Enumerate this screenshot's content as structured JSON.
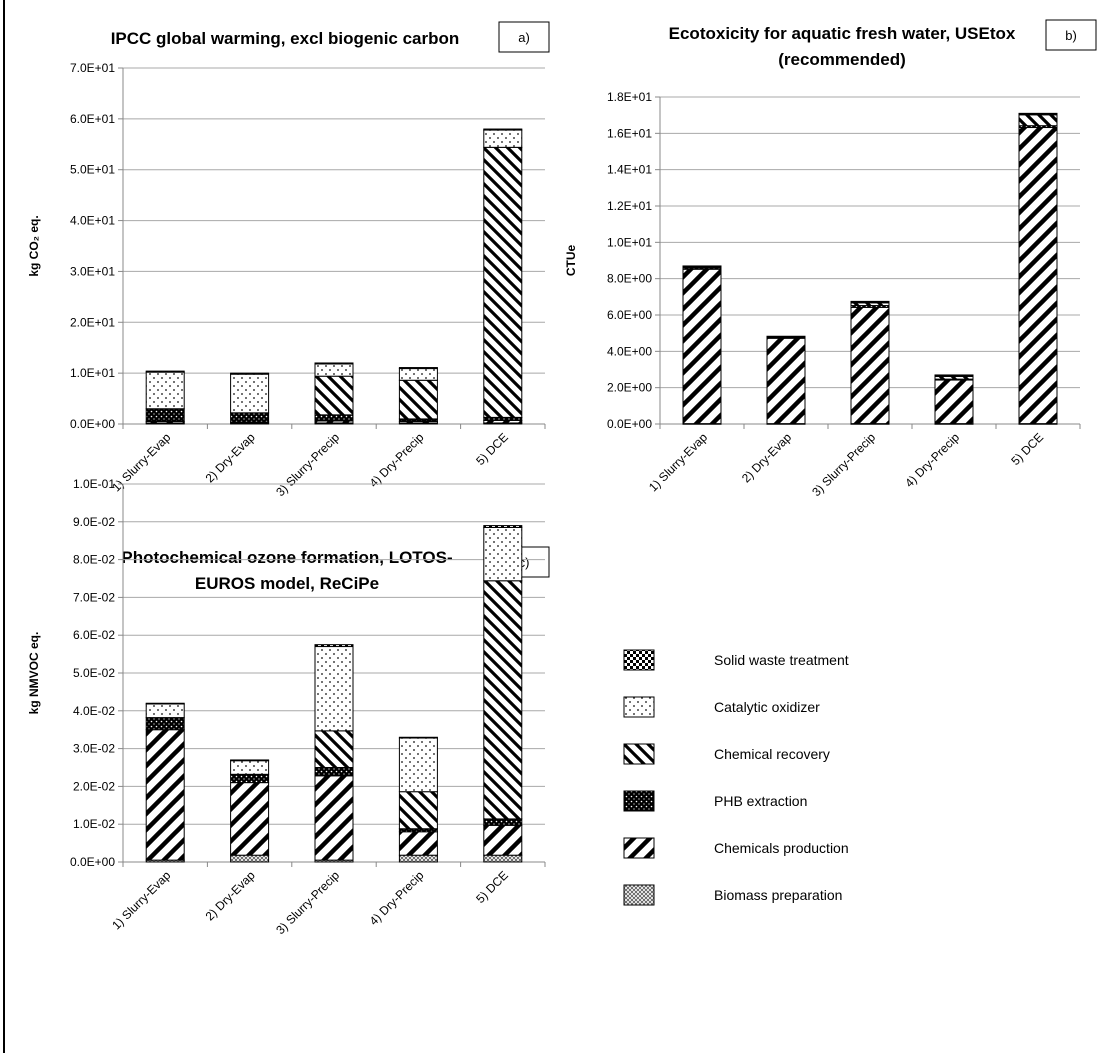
{
  "legend": [
    {
      "key": "solid",
      "label": "Solid waste treatment",
      "pattern": "checker"
    },
    {
      "key": "cat",
      "label": "Catalytic oxidizer",
      "pattern": "dots"
    },
    {
      "key": "chemrec",
      "label": "Chemical recovery",
      "pattern": "backslash"
    },
    {
      "key": "phb",
      "label": "PHB extraction",
      "pattern": "black-dots"
    },
    {
      "key": "chemprod",
      "label": "Chemicals production",
      "pattern": "slash"
    },
    {
      "key": "bio",
      "label": "Biomass preparation",
      "pattern": "crosshatch"
    }
  ],
  "chart_data": [
    {
      "id": "a",
      "badge": "a)",
      "type": "bar",
      "stacked": true,
      "title": [
        "IPCC global warming, excl biogenic carbon"
      ],
      "ylabel": "kg CO₂ eq.",
      "ylim": [
        0,
        70
      ],
      "ytick_step": 10,
      "ytick_labels": [
        "0.0E+00",
        "1.0E+01",
        "2.0E+01",
        "3.0E+01",
        "4.0E+01",
        "5.0E+01",
        "6.0E+01",
        "7.0E+01"
      ],
      "grid": true,
      "categories": [
        "1) Slurry-Evap",
        "2) Dry-Evap",
        "3) Slurry-Precip",
        "4) Dry-Precip",
        "5) DCE"
      ],
      "series": [
        {
          "key": "bio",
          "name": "Biomass preparation",
          "values": [
            0.2,
            0.2,
            0.2,
            0.2,
            0.2
          ]
        },
        {
          "key": "chemprod",
          "name": "Chemicals production",
          "values": [
            0.3,
            0.2,
            0.4,
            0.3,
            0.5
          ]
        },
        {
          "key": "phb",
          "name": "PHB extraction",
          "values": [
            2.5,
            1.8,
            1.2,
            0.5,
            0.6
          ]
        },
        {
          "key": "chemrec",
          "name": "Chemical recovery",
          "values": [
            0,
            0,
            7.6,
            7.6,
            53.1
          ]
        },
        {
          "key": "cat",
          "name": "Catalytic oxidizer",
          "values": [
            7.2,
            7.6,
            2.4,
            2.3,
            3.4
          ]
        },
        {
          "key": "solid",
          "name": "Solid waste treatment",
          "values": [
            0.2,
            0.2,
            0.2,
            0.2,
            0.2
          ]
        }
      ]
    },
    {
      "id": "b",
      "badge": "b)",
      "type": "bar",
      "stacked": true,
      "title": [
        "Ecotoxicity for aquatic fresh water, USEtox",
        "(recommended)"
      ],
      "ylabel": "CTUe",
      "ylim": [
        0,
        18
      ],
      "ytick_step": 2,
      "ytick_labels": [
        "0.0E+00",
        "2.0E+00",
        "4.0E+00",
        "6.0E+00",
        "8.0E+00",
        "1.0E+01",
        "1.2E+01",
        "1.4E+01",
        "1.6E+01",
        "1.8E+01"
      ],
      "grid": true,
      "categories": [
        "1) Slurry-Evap",
        "2) Dry-Evap",
        "3) Slurry-Precip",
        "4) Dry-Precip",
        "5) DCE"
      ],
      "series": [
        {
          "key": "bio",
          "name": "Biomass preparation",
          "values": [
            0.02,
            0.02,
            0.02,
            0.02,
            0.02
          ]
        },
        {
          "key": "chemprod",
          "name": "Chemicals production",
          "values": [
            8.5,
            4.7,
            6.4,
            2.4,
            16.3
          ]
        },
        {
          "key": "phb",
          "name": "PHB extraction",
          "values": [
            0.1,
            0.05,
            0.1,
            0.05,
            0.1
          ]
        },
        {
          "key": "chemrec",
          "name": "Chemical recovery",
          "values": [
            0,
            0,
            0.15,
            0.15,
            0.6
          ]
        },
        {
          "key": "cat",
          "name": "Catalytic oxidizer",
          "values": [
            0.05,
            0.03,
            0.05,
            0.05,
            0.05
          ]
        },
        {
          "key": "solid",
          "name": "Solid waste treatment",
          "values": [
            0.03,
            0.03,
            0.03,
            0.03,
            0.03
          ]
        }
      ]
    },
    {
      "id": "c",
      "badge": "c)",
      "type": "bar",
      "stacked": true,
      "title": [
        "Photochemical ozone formation, LOTOS-",
        "EUROS model, ReCiPe"
      ],
      "ylabel": "kg NMVOC eq.",
      "ylim": [
        0,
        0.1
      ],
      "ytick_step": 0.01,
      "ytick_labels": [
        "0.0E+00",
        "1.0E-02",
        "2.0E-02",
        "3.0E-02",
        "4.0E-02",
        "5.0E-02",
        "6.0E-02",
        "7.0E-02",
        "8.0E-02",
        "9.0E-02",
        "1.0E-01"
      ],
      "grid": true,
      "categories": [
        "1) Slurry-Evap",
        "2) Dry-Evap",
        "3) Slurry-Precip",
        "4) Dry-Precip",
        "5) DCE"
      ],
      "series": [
        {
          "key": "bio",
          "name": "Biomass preparation",
          "values": [
            0.0005,
            0.0018,
            0.0005,
            0.0018,
            0.0018
          ]
        },
        {
          "key": "chemprod",
          "name": "Chemicals production",
          "values": [
            0.0345,
            0.0192,
            0.0223,
            0.0062,
            0.0079
          ]
        },
        {
          "key": "phb",
          "name": "PHB extraction",
          "values": [
            0.0032,
            0.0022,
            0.0022,
            0.0008,
            0.0017
          ]
        },
        {
          "key": "chemrec",
          "name": "Chemical recovery",
          "values": [
            0,
            0,
            0.0097,
            0.0098,
            0.063
          ]
        },
        {
          "key": "cat",
          "name": "Catalytic oxidizer",
          "values": [
            0.0036,
            0.0036,
            0.0223,
            0.0142,
            0.0141
          ]
        },
        {
          "key": "solid",
          "name": "Solid waste treatment",
          "values": [
            0.0002,
            0.0002,
            0.0005,
            0.0002,
            0.0005
          ]
        }
      ]
    }
  ]
}
